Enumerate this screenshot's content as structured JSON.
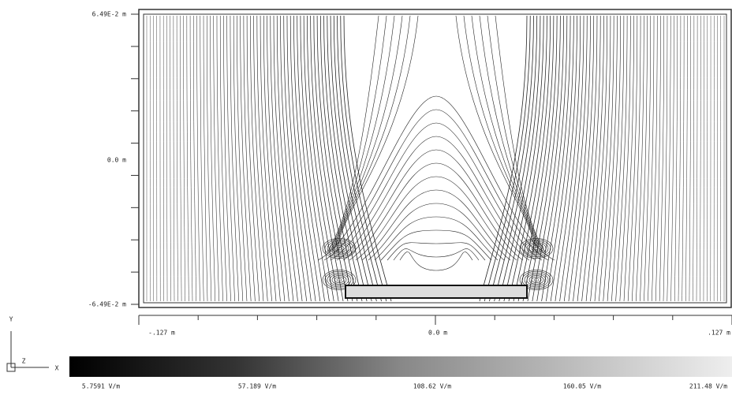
{
  "plot": {
    "y_axis": {
      "labels": [
        "6.49E-2 m",
        "0.0 m",
        "-6.49E-2 m"
      ]
    },
    "x_axis": {
      "labels": [
        "-.127 m",
        "0.0 m",
        ".127 m"
      ]
    },
    "triad": {
      "y": "Y",
      "x": "X",
      "z": "Z"
    },
    "colorbar": {
      "labels": [
        "5.7591 V/m",
        "57.189 V/m",
        "108.62 V/m",
        "160.05 V/m",
        "211.48 V/m"
      ]
    }
  }
}
